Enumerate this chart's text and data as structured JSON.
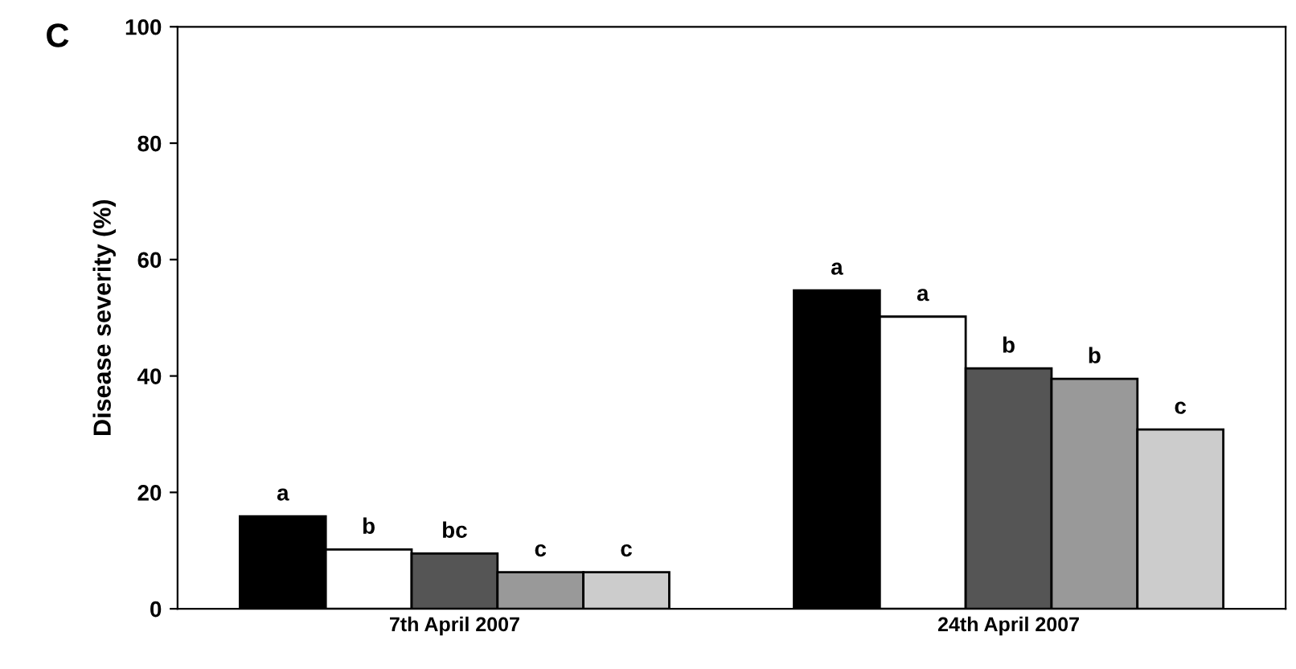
{
  "chart_data": {
    "type": "bar",
    "title": "C",
    "ylabel": "Disease severity (%)",
    "categories": [
      "7th April 2007",
      "24th April 2007"
    ],
    "series": [
      {
        "color": "#000000",
        "values": [
          15.9,
          54.7
        ],
        "value_labels": [
          "a",
          "a"
        ]
      },
      {
        "color": "#ffffff",
        "values": [
          10.2,
          50.2
        ],
        "value_labels": [
          "b",
          "a"
        ]
      },
      {
        "color": "#555555",
        "values": [
          9.5,
          41.3
        ],
        "value_labels": [
          "bc",
          "b"
        ]
      },
      {
        "color": "#999999",
        "values": [
          6.3,
          39.5
        ],
        "value_labels": [
          "c",
          "b"
        ]
      },
      {
        "color": "#cccccc",
        "values": [
          6.3,
          30.8
        ],
        "value_labels": [
          "c",
          "c"
        ]
      }
    ],
    "ylim": [
      0,
      100
    ],
    "yticks": [
      0,
      20,
      40,
      60,
      80,
      100
    ],
    "grid": false
  }
}
